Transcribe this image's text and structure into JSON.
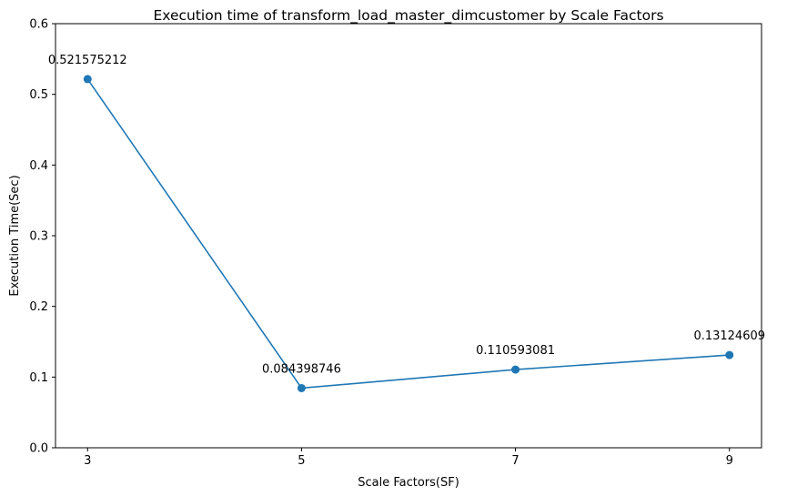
{
  "chart_data": {
    "type": "line",
    "title": "Execution time of transform_load_master_dimcustomer by Scale Factors",
    "xlabel": "Scale Factors(SF)",
    "ylabel": "Execution Time(Sec)",
    "x": [
      3,
      5,
      7,
      9
    ],
    "x_ticks": [
      "3",
      "5",
      "7",
      "9"
    ],
    "y_ticks": [
      "0.0",
      "0.1",
      "0.2",
      "0.3",
      "0.4",
      "0.5",
      "0.6"
    ],
    "ylim": [
      0,
      0.6
    ],
    "xlim": [
      2.7,
      9.3
    ],
    "grid": false,
    "legend": "none",
    "series": [
      {
        "values": [
          0.521575212,
          0.084398746,
          0.110593081,
          0.13124609
        ],
        "labels": [
          "0.521575212",
          "0.084398746",
          "0.110593081",
          "0.13124609"
        ],
        "color": "#1f77b4",
        "marker": "circle"
      }
    ]
  }
}
